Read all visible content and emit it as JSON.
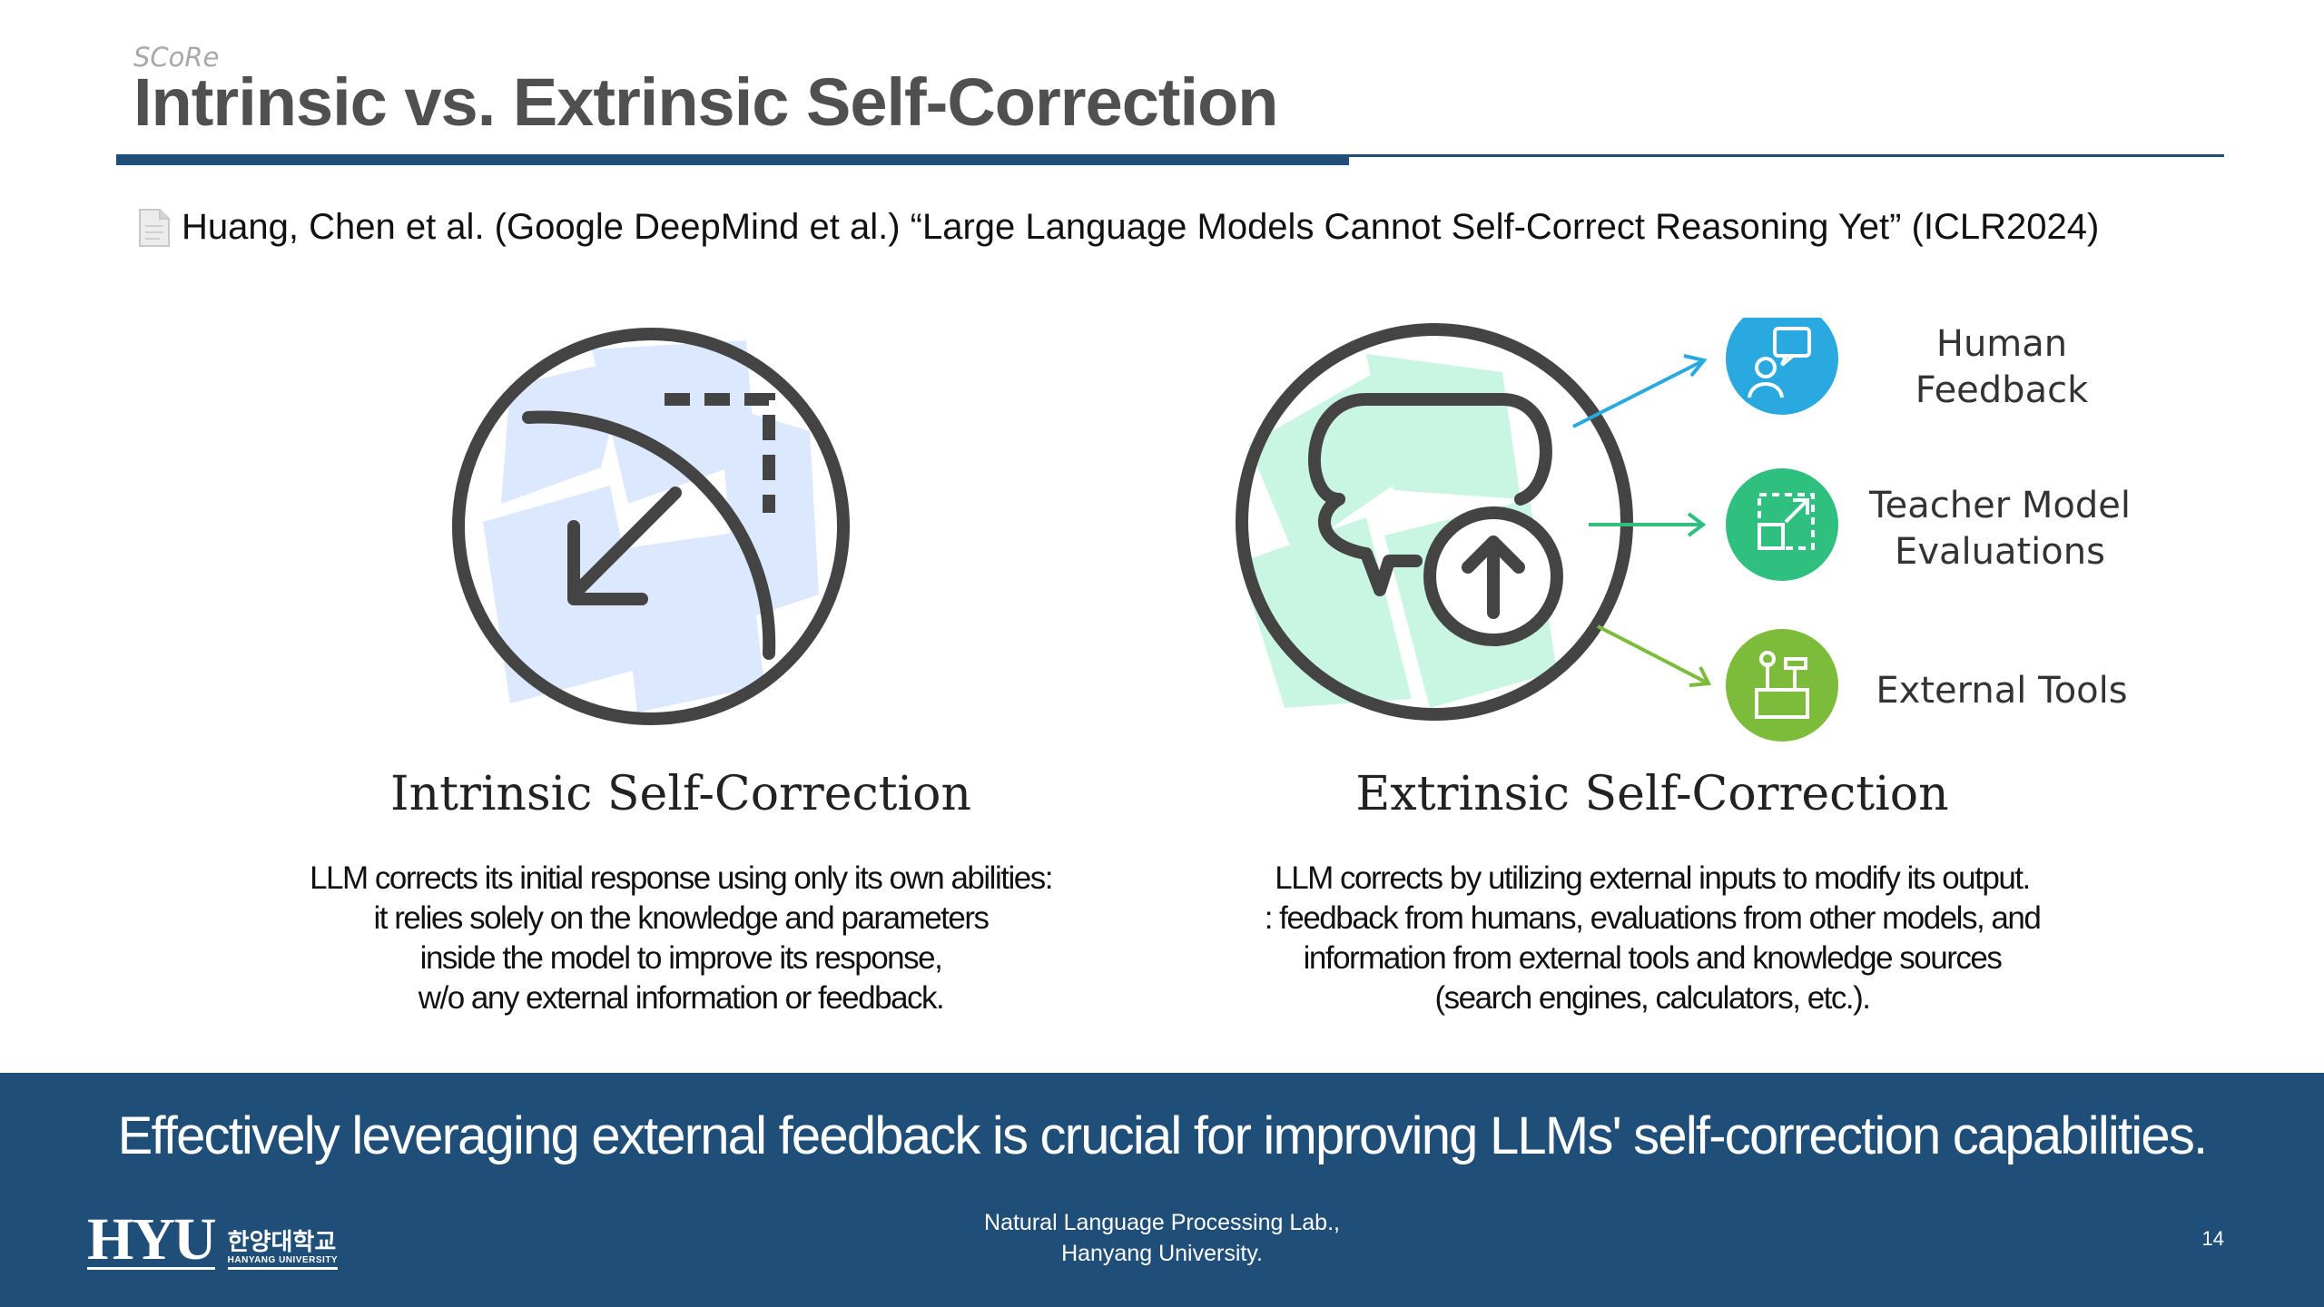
{
  "header": {
    "tag": "SCoRe",
    "title": "Intrinsic vs. Extrinsic Self-Correction",
    "accent_color": "#1f4e79"
  },
  "citation": {
    "icon": "document-icon",
    "text": "Huang, Chen et al. (Google DeepMind et al.) “Large Language Models Cannot Self-Correct Reasoning Yet” (ICLR2024)"
  },
  "intrinsic": {
    "icon": "arrow-down-left-icon",
    "title": "Intrinsic Self-Correction",
    "description": [
      "LLM corrects its initial response using only its own abilities:",
      "it relies solely on the knowledge and parameters",
      "inside the model to improve its response,",
      "w/o any external information or feedback."
    ]
  },
  "extrinsic": {
    "icon": "chat-bubble-upload-icon",
    "title": "Extrinsic Self-Correction",
    "sources": [
      {
        "label_lines": [
          "Human",
          "Feedback"
        ],
        "icon": "human-feedback-icon",
        "color": "#29a9e0"
      },
      {
        "label_lines": [
          "Teacher Model",
          "Evaluations"
        ],
        "icon": "expand-icon",
        "color": "#2fbf7f"
      },
      {
        "label_lines": [
          "External Tools"
        ],
        "icon": "toolbox-icon",
        "color": "#7cbc3a"
      }
    ],
    "description": [
      "LLM corrects by utilizing external inputs to modify its output.",
      ": feedback from humans, evaluations from other models, and",
      "information from external tools and knowledge sources",
      "(search engines, calculators, etc.)."
    ]
  },
  "footer": {
    "takeaway": "Effectively leveraging external feedback is crucial for improving LLMs' self-correction capabilities.",
    "logo_text": "HYU",
    "logo_korean": "한양대학교",
    "logo_english": "HANYANG UNIVERSITY",
    "lab_line1": "Natural Language Processing Lab.,",
    "lab_line2": "Hanyang University.",
    "page_number": "14"
  }
}
